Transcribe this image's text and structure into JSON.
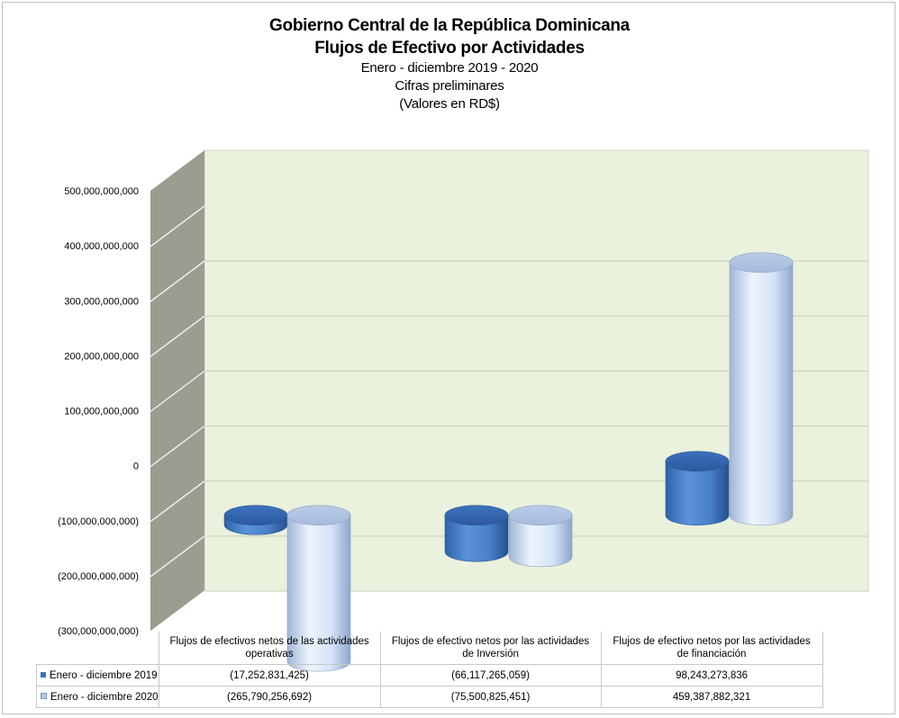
{
  "chart_data": {
    "type": "bar",
    "title": "Gobierno Central de la República Dominicana",
    "subtitle_bold": "Flujos de Efectivo por Actividades",
    "subtitles": [
      "Enero - diciembre 2019 - 2020",
      "Cifras preliminares",
      "(Valores en RD$)"
    ],
    "categories": [
      [
        "Flujos de efectivos netos de las actividades",
        "operativas"
      ],
      [
        "Flujos de efectivo netos por las actividades",
        "de Inversión"
      ],
      [
        "Flujos de efectivo netos por las actividades",
        "de financiación"
      ]
    ],
    "series": [
      {
        "name": "Enero - diciembre 2019",
        "color": "#4a86d0",
        "values": [
          -17252831425,
          -66117265059,
          98243273836
        ],
        "labels": [
          "(17,252,831,425)",
          "(66,117,265,059)",
          "98,243,273,836"
        ]
      },
      {
        "name": "Enero - diciembre 2020",
        "color": "#c8dcf5",
        "values": [
          -265790256692,
          -75500825451,
          459387882321
        ],
        "labels": [
          "(265,790,256,692)",
          "(75,500,825,451)",
          "459,387,882,321"
        ]
      }
    ],
    "ylim": [
      -300000000000,
      500000000000
    ],
    "yticks": [
      {
        "value": 500000000000,
        "label": "500,000,000,000"
      },
      {
        "value": 400000000000,
        "label": "400,000,000,000"
      },
      {
        "value": 300000000000,
        "label": "300,000,000,000"
      },
      {
        "value": 200000000000,
        "label": "200,000,000,000"
      },
      {
        "value": 100000000000,
        "label": "100,000,000,000"
      },
      {
        "value": 0,
        "label": "0"
      },
      {
        "value": -100000000000,
        "label": "(100,000,000,000)"
      },
      {
        "value": -200000000000,
        "label": "(200,000,000,000)"
      },
      {
        "value": -300000000000,
        "label": "(300,000,000,000)"
      }
    ],
    "grid": true,
    "legend": "data-table",
    "shape": "cylinder-3d",
    "wall_color": "#eaf1dd",
    "side_wall_color": "#9a9d8f"
  }
}
